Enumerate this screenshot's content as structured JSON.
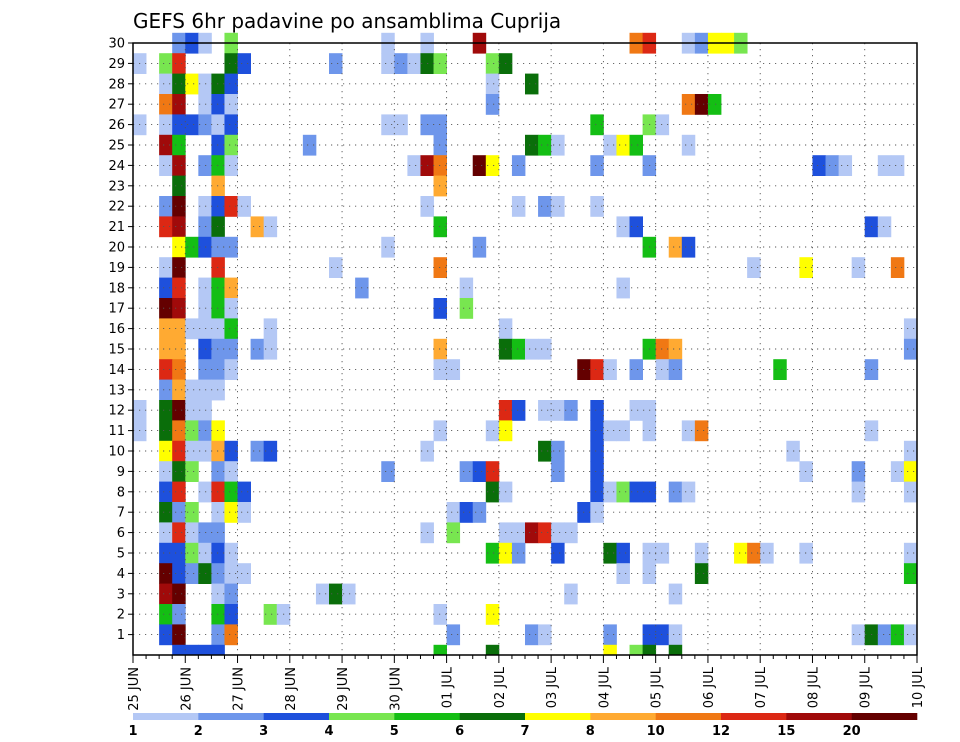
{
  "chart_data": {
    "type": "heatmap",
    "title": "GEFS 6hr padavine po ansamblima Cuprija",
    "xlabel": "",
    "ylabel": "",
    "x_time_start": "25 JUN 00Z",
    "x_time_step_hours": 6,
    "x_time_steps": 60,
    "x_tick_labels": [
      "25 JUN",
      "26 JUN",
      "27 JUN",
      "28 JUN",
      "29 JUN",
      "30 JUN",
      "01 JUL",
      "02 JUL",
      "03 JUL",
      "04 JUL",
      "05 JUL",
      "06 JUL",
      "07 JUL",
      "08 JUL",
      "09 JUL",
      "10 JUL"
    ],
    "y_tick_labels": [
      "1",
      "2",
      "3",
      "4",
      "5",
      "6",
      "7",
      "8",
      "9",
      "10",
      "11",
      "12",
      "13",
      "14",
      "15",
      "16",
      "17",
      "18",
      "19",
      "20",
      "21",
      "22",
      "23",
      "24",
      "25",
      "26",
      "27",
      "28",
      "29",
      "30"
    ],
    "ylim": [
      0,
      30
    ],
    "grid": "dotted",
    "colorbar": {
      "placement": "bottom",
      "thresholds": [
        "1",
        "2",
        "3",
        "4",
        "5",
        "6",
        "7",
        "8",
        "10",
        "12",
        "15",
        "20"
      ],
      "colors": [
        "#b4c8f5",
        "#6e96eb",
        "#1e50dc",
        "#78e650",
        "#14be14",
        "#0a6e0a",
        "#ffff00",
        "#ffaa32",
        "#f07814",
        "#dc2814",
        "#a00a0a",
        "#640000"
      ]
    },
    "cells_format": "[member, time_step_index_from_25_JUN_00Z, color_class_index_0_to_11]",
    "cells": [
      [
        30,
        3,
        1
      ],
      [
        30,
        4,
        2
      ],
      [
        30,
        5,
        0
      ],
      [
        30,
        7,
        3
      ],
      [
        30,
        19,
        0
      ],
      [
        30,
        22,
        0
      ],
      [
        30,
        26,
        10
      ],
      [
        30,
        38,
        8
      ],
      [
        30,
        39,
        9
      ],
      [
        30,
        42,
        0
      ],
      [
        30,
        43,
        1
      ],
      [
        30,
        44,
        6
      ],
      [
        30,
        45,
        6
      ],
      [
        30,
        46,
        3
      ],
      [
        29,
        0,
        0
      ],
      [
        29,
        2,
        3
      ],
      [
        29,
        3,
        9
      ],
      [
        29,
        7,
        5
      ],
      [
        29,
        8,
        2
      ],
      [
        29,
        15,
        1
      ],
      [
        29,
        19,
        0
      ],
      [
        29,
        20,
        1
      ],
      [
        29,
        21,
        0
      ],
      [
        29,
        22,
        5
      ],
      [
        29,
        23,
        3
      ],
      [
        29,
        27,
        3
      ],
      [
        29,
        28,
        5
      ],
      [
        28,
        2,
        0
      ],
      [
        28,
        3,
        5
      ],
      [
        28,
        4,
        6
      ],
      [
        28,
        5,
        0
      ],
      [
        28,
        6,
        5
      ],
      [
        28,
        7,
        2
      ],
      [
        28,
        27,
        0
      ],
      [
        28,
        30,
        5
      ],
      [
        27,
        2,
        8
      ],
      [
        27,
        3,
        10
      ],
      [
        27,
        5,
        0
      ],
      [
        27,
        6,
        2
      ],
      [
        27,
        7,
        0
      ],
      [
        27,
        27,
        1
      ],
      [
        27,
        42,
        8
      ],
      [
        27,
        43,
        11
      ],
      [
        27,
        44,
        4
      ],
      [
        26,
        0,
        0
      ],
      [
        26,
        2,
        0
      ],
      [
        26,
        3,
        2
      ],
      [
        26,
        4,
        2
      ],
      [
        26,
        5,
        1
      ],
      [
        26,
        6,
        0
      ],
      [
        26,
        7,
        2
      ],
      [
        26,
        19,
        0
      ],
      [
        26,
        20,
        0
      ],
      [
        26,
        22,
        1
      ],
      [
        26,
        23,
        1
      ],
      [
        26,
        35,
        4
      ],
      [
        26,
        39,
        3
      ],
      [
        26,
        40,
        0
      ],
      [
        25,
        2,
        10
      ],
      [
        25,
        3,
        4
      ],
      [
        25,
        6,
        2
      ],
      [
        25,
        7,
        3
      ],
      [
        25,
        13,
        1
      ],
      [
        25,
        23,
        1
      ],
      [
        25,
        30,
        5
      ],
      [
        25,
        31,
        4
      ],
      [
        25,
        32,
        0
      ],
      [
        25,
        36,
        0
      ],
      [
        25,
        37,
        6
      ],
      [
        25,
        38,
        4
      ],
      [
        25,
        42,
        0
      ],
      [
        24,
        2,
        0
      ],
      [
        24,
        3,
        10
      ],
      [
        24,
        5,
        1
      ],
      [
        24,
        6,
        4
      ],
      [
        24,
        7,
        0
      ],
      [
        24,
        21,
        0
      ],
      [
        24,
        22,
        10
      ],
      [
        24,
        23,
        8
      ],
      [
        24,
        26,
        11
      ],
      [
        24,
        27,
        6
      ],
      [
        24,
        29,
        1
      ],
      [
        24,
        35,
        1
      ],
      [
        24,
        39,
        1
      ],
      [
        24,
        52,
        2
      ],
      [
        24,
        53,
        1
      ],
      [
        24,
        54,
        0
      ],
      [
        24,
        57,
        0
      ],
      [
        24,
        58,
        0
      ],
      [
        23,
        3,
        5
      ],
      [
        23,
        6,
        7
      ],
      [
        23,
        23,
        7
      ],
      [
        22,
        2,
        1
      ],
      [
        22,
        3,
        11
      ],
      [
        22,
        5,
        0
      ],
      [
        22,
        6,
        2
      ],
      [
        22,
        7,
        9
      ],
      [
        22,
        8,
        0
      ],
      [
        22,
        22,
        0
      ],
      [
        22,
        29,
        0
      ],
      [
        22,
        31,
        1
      ],
      [
        22,
        32,
        0
      ],
      [
        22,
        35,
        0
      ],
      [
        21,
        2,
        9
      ],
      [
        21,
        3,
        10
      ],
      [
        21,
        5,
        1
      ],
      [
        21,
        6,
        5
      ],
      [
        21,
        9,
        7
      ],
      [
        21,
        10,
        0
      ],
      [
        21,
        23,
        4
      ],
      [
        21,
        37,
        0
      ],
      [
        21,
        38,
        2
      ],
      [
        21,
        56,
        2
      ],
      [
        21,
        57,
        0
      ],
      [
        20,
        3,
        6
      ],
      [
        20,
        4,
        4
      ],
      [
        20,
        5,
        2
      ],
      [
        20,
        6,
        1
      ],
      [
        20,
        7,
        1
      ],
      [
        20,
        19,
        0
      ],
      [
        20,
        26,
        1
      ],
      [
        20,
        39,
        4
      ],
      [
        20,
        41,
        7
      ],
      [
        20,
        42,
        2
      ],
      [
        19,
        2,
        0
      ],
      [
        19,
        3,
        11
      ],
      [
        19,
        6,
        9
      ],
      [
        19,
        15,
        0
      ],
      [
        19,
        23,
        8
      ],
      [
        19,
        47,
        0
      ],
      [
        19,
        51,
        6
      ],
      [
        19,
        55,
        0
      ],
      [
        19,
        58,
        8
      ],
      [
        18,
        2,
        2
      ],
      [
        18,
        3,
        9
      ],
      [
        18,
        5,
        0
      ],
      [
        18,
        6,
        4
      ],
      [
        18,
        7,
        7
      ],
      [
        18,
        17,
        1
      ],
      [
        18,
        25,
        0
      ],
      [
        18,
        37,
        0
      ],
      [
        17,
        2,
        11
      ],
      [
        17,
        3,
        10
      ],
      [
        17,
        5,
        0
      ],
      [
        17,
        6,
        4
      ],
      [
        17,
        7,
        0
      ],
      [
        17,
        23,
        2
      ],
      [
        17,
        25,
        3
      ],
      [
        16,
        2,
        7
      ],
      [
        16,
        3,
        7
      ],
      [
        16,
        4,
        0
      ],
      [
        16,
        5,
        0
      ],
      [
        16,
        6,
        0
      ],
      [
        16,
        7,
        4
      ],
      [
        16,
        10,
        0
      ],
      [
        16,
        28,
        0
      ],
      [
        16,
        59,
        0
      ],
      [
        15,
        2,
        7
      ],
      [
        15,
        3,
        7
      ],
      [
        15,
        5,
        2
      ],
      [
        15,
        6,
        1
      ],
      [
        15,
        7,
        1
      ],
      [
        15,
        9,
        1
      ],
      [
        15,
        10,
        0
      ],
      [
        15,
        23,
        7
      ],
      [
        15,
        28,
        5
      ],
      [
        15,
        29,
        4
      ],
      [
        15,
        30,
        0
      ],
      [
        15,
        31,
        0
      ],
      [
        15,
        39,
        4
      ],
      [
        15,
        40,
        8
      ],
      [
        15,
        41,
        7
      ],
      [
        15,
        59,
        1
      ],
      [
        14,
        2,
        9
      ],
      [
        14,
        3,
        8
      ],
      [
        14,
        5,
        1
      ],
      [
        14,
        6,
        1
      ],
      [
        14,
        7,
        0
      ],
      [
        14,
        23,
        0
      ],
      [
        14,
        24,
        0
      ],
      [
        14,
        34,
        11
      ],
      [
        14,
        35,
        9
      ],
      [
        14,
        36,
        0
      ],
      [
        14,
        38,
        1
      ],
      [
        14,
        40,
        0
      ],
      [
        14,
        41,
        1
      ],
      [
        14,
        49,
        4
      ],
      [
        14,
        56,
        1
      ],
      [
        13,
        2,
        1
      ],
      [
        13,
        3,
        7
      ],
      [
        13,
        4,
        0
      ],
      [
        13,
        5,
        0
      ],
      [
        13,
        6,
        0
      ],
      [
        12,
        0,
        0
      ],
      [
        12,
        2,
        5
      ],
      [
        12,
        3,
        11
      ],
      [
        12,
        4,
        0
      ],
      [
        12,
        5,
        0
      ],
      [
        12,
        28,
        9
      ],
      [
        12,
        29,
        2
      ],
      [
        12,
        31,
        0
      ],
      [
        12,
        32,
        0
      ],
      [
        12,
        33,
        1
      ],
      [
        12,
        35,
        2
      ],
      [
        12,
        38,
        0
      ],
      [
        12,
        39,
        0
      ],
      [
        11,
        0,
        0
      ],
      [
        11,
        2,
        5
      ],
      [
        11,
        3,
        8
      ],
      [
        11,
        4,
        3
      ],
      [
        11,
        5,
        1
      ],
      [
        11,
        6,
        6
      ],
      [
        11,
        23,
        0
      ],
      [
        11,
        27,
        0
      ],
      [
        11,
        28,
        6
      ],
      [
        11,
        35,
        2
      ],
      [
        11,
        36,
        0
      ],
      [
        11,
        37,
        0
      ],
      [
        11,
        39,
        0
      ],
      [
        11,
        42,
        0
      ],
      [
        11,
        43,
        8
      ],
      [
        11,
        56,
        0
      ],
      [
        10,
        2,
        6
      ],
      [
        10,
        3,
        9
      ],
      [
        10,
        4,
        0
      ],
      [
        10,
        5,
        0
      ],
      [
        10,
        6,
        7
      ],
      [
        10,
        7,
        2
      ],
      [
        10,
        9,
        1
      ],
      [
        10,
        10,
        2
      ],
      [
        10,
        22,
        0
      ],
      [
        10,
        31,
        5
      ],
      [
        10,
        32,
        1
      ],
      [
        10,
        35,
        2
      ],
      [
        10,
        50,
        0
      ],
      [
        10,
        59,
        0
      ],
      [
        9,
        2,
        0
      ],
      [
        9,
        3,
        5
      ],
      [
        9,
        4,
        3
      ],
      [
        9,
        6,
        1
      ],
      [
        9,
        7,
        0
      ],
      [
        9,
        19,
        1
      ],
      [
        9,
        25,
        1
      ],
      [
        9,
        26,
        2
      ],
      [
        9,
        27,
        9
      ],
      [
        9,
        32,
        1
      ],
      [
        9,
        35,
        2
      ],
      [
        9,
        51,
        0
      ],
      [
        9,
        55,
        1
      ],
      [
        9,
        58,
        0
      ],
      [
        9,
        59,
        6
      ],
      [
        8,
        2,
        2
      ],
      [
        8,
        3,
        9
      ],
      [
        8,
        5,
        0
      ],
      [
        8,
        6,
        9
      ],
      [
        8,
        7,
        4
      ],
      [
        8,
        8,
        2
      ],
      [
        8,
        27,
        5
      ],
      [
        8,
        28,
        0
      ],
      [
        8,
        35,
        2
      ],
      [
        8,
        36,
        0
      ],
      [
        8,
        37,
        3
      ],
      [
        8,
        38,
        2
      ],
      [
        8,
        39,
        2
      ],
      [
        8,
        41,
        1
      ],
      [
        8,
        42,
        0
      ],
      [
        8,
        55,
        0
      ],
      [
        8,
        59,
        0
      ],
      [
        7,
        2,
        5
      ],
      [
        7,
        3,
        1
      ],
      [
        7,
        4,
        3
      ],
      [
        7,
        6,
        0
      ],
      [
        7,
        7,
        6
      ],
      [
        7,
        8,
        0
      ],
      [
        7,
        24,
        0
      ],
      [
        7,
        25,
        2
      ],
      [
        7,
        26,
        1
      ],
      [
        7,
        34,
        2
      ],
      [
        7,
        35,
        0
      ],
      [
        6,
        2,
        0
      ],
      [
        6,
        3,
        9
      ],
      [
        6,
        4,
        0
      ],
      [
        6,
        5,
        1
      ],
      [
        6,
        6,
        1
      ],
      [
        6,
        22,
        0
      ],
      [
        6,
        24,
        3
      ],
      [
        6,
        28,
        0
      ],
      [
        6,
        29,
        0
      ],
      [
        6,
        30,
        10
      ],
      [
        6,
        31,
        9
      ],
      [
        6,
        32,
        0
      ],
      [
        6,
        33,
        0
      ],
      [
        5,
        2,
        2
      ],
      [
        5,
        3,
        2
      ],
      [
        5,
        4,
        3
      ],
      [
        5,
        5,
        0
      ],
      [
        5,
        6,
        2
      ],
      [
        5,
        7,
        0
      ],
      [
        5,
        27,
        4
      ],
      [
        5,
        28,
        6
      ],
      [
        5,
        29,
        1
      ],
      [
        5,
        32,
        2
      ],
      [
        5,
        36,
        5
      ],
      [
        5,
        37,
        2
      ],
      [
        5,
        39,
        0
      ],
      [
        5,
        40,
        0
      ],
      [
        5,
        43,
        0
      ],
      [
        5,
        46,
        6
      ],
      [
        5,
        47,
        8
      ],
      [
        5,
        48,
        0
      ],
      [
        5,
        51,
        0
      ],
      [
        5,
        59,
        0
      ],
      [
        4,
        2,
        11
      ],
      [
        4,
        3,
        2
      ],
      [
        4,
        4,
        1
      ],
      [
        4,
        5,
        5
      ],
      [
        4,
        6,
        1
      ],
      [
        4,
        7,
        0
      ],
      [
        4,
        8,
        0
      ],
      [
        4,
        37,
        0
      ],
      [
        4,
        39,
        0
      ],
      [
        4,
        43,
        5
      ],
      [
        4,
        59,
        4
      ],
      [
        3,
        2,
        10
      ],
      [
        3,
        3,
        11
      ],
      [
        3,
        6,
        0
      ],
      [
        3,
        7,
        1
      ],
      [
        3,
        14,
        0
      ],
      [
        3,
        15,
        5
      ],
      [
        3,
        16,
        0
      ],
      [
        3,
        33,
        0
      ],
      [
        3,
        41,
        0
      ],
      [
        2,
        2,
        4
      ],
      [
        2,
        3,
        1
      ],
      [
        2,
        6,
        4
      ],
      [
        2,
        7,
        2
      ],
      [
        2,
        10,
        3
      ],
      [
        2,
        11,
        0
      ],
      [
        2,
        23,
        0
      ],
      [
        2,
        27,
        6
      ],
      [
        1,
        2,
        2
      ],
      [
        1,
        3,
        11
      ],
      [
        1,
        6,
        1
      ],
      [
        1,
        7,
        8
      ],
      [
        1,
        24,
        1
      ],
      [
        1,
        30,
        1
      ],
      [
        1,
        31,
        0
      ],
      [
        1,
        36,
        1
      ],
      [
        1,
        39,
        2
      ],
      [
        1,
        40,
        2
      ],
      [
        1,
        41,
        0
      ],
      [
        1,
        55,
        0
      ],
      [
        1,
        56,
        5
      ],
      [
        1,
        57,
        1
      ],
      [
        1,
        58,
        4
      ],
      [
        1,
        59,
        0
      ],
      [
        0,
        3,
        2
      ],
      [
        0,
        4,
        2
      ],
      [
        0,
        5,
        2
      ],
      [
        0,
        6,
        2
      ],
      [
        0,
        23,
        4
      ],
      [
        0,
        27,
        5
      ],
      [
        0,
        36,
        6
      ],
      [
        0,
        38,
        3
      ],
      [
        0,
        39,
        5
      ],
      [
        0,
        41,
        5
      ]
    ]
  }
}
